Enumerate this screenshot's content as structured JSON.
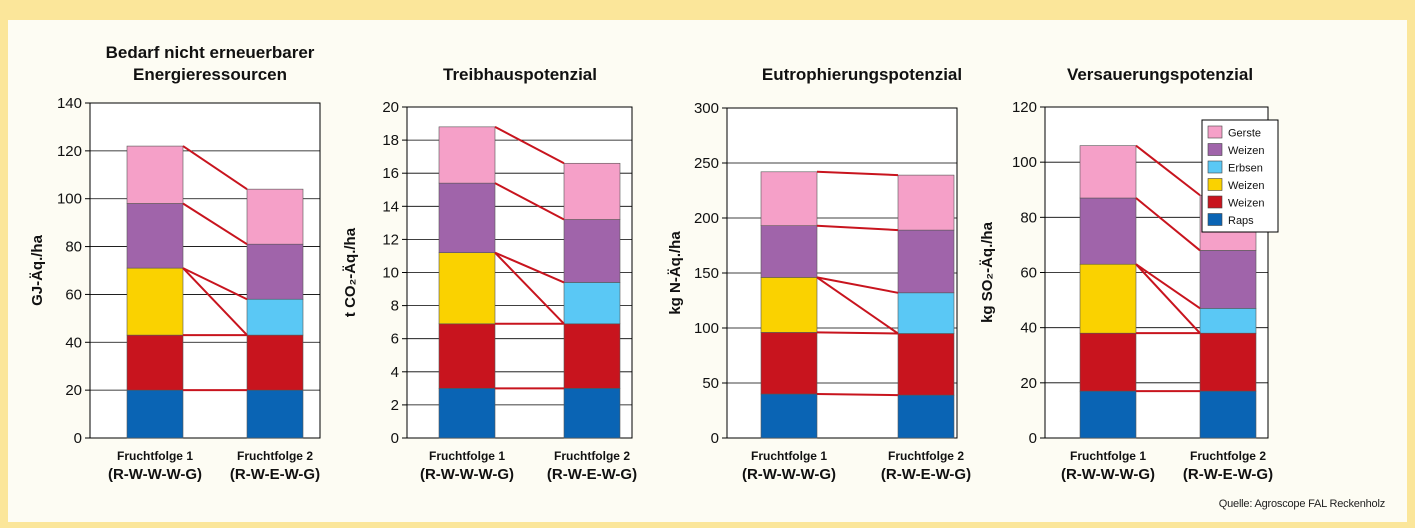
{
  "colors": {
    "Raps": "#0a64b4",
    "Weizen_1": "#c8141e",
    "Weizen_2": "#fad200",
    "Erbsen": "#5ac8f5",
    "Weizen_3": "#a064aa",
    "Gerste": "#f5a0c8",
    "connector": "#c8141e"
  },
  "legend": [
    {
      "label": "Gerste",
      "key": "Gerste"
    },
    {
      "label": "Weizen",
      "key": "Weizen_3"
    },
    {
      "label": "Erbsen",
      "key": "Erbsen"
    },
    {
      "label": "Weizen",
      "key": "Weizen_2"
    },
    {
      "label": "Weizen",
      "key": "Weizen_1"
    },
    {
      "label": "Raps",
      "key": "Raps"
    }
  ],
  "source": "Quelle: Agroscope FAL Reckenholz",
  "chart_data": [
    {
      "type": "bar",
      "stacked": true,
      "title": [
        "Bedarf nicht erneuerbarer",
        "Energieressourcen"
      ],
      "ylabel": "GJ-Äq./ha",
      "ylim": [
        0,
        140
      ],
      "yticks": [
        0,
        20,
        40,
        60,
        80,
        100,
        120,
        140
      ],
      "categories": [
        [
          "Fruchtfolge 1",
          "(R-W-W-W-G)"
        ],
        [
          "Fruchtfolge 2",
          "(R-W-E-W-G)"
        ]
      ],
      "bars": [
        [
          {
            "crop": "Raps",
            "value": 20
          },
          {
            "crop": "Weizen_1",
            "value": 23
          },
          {
            "crop": "Weizen_2",
            "value": 28
          },
          {
            "crop": "Weizen_3",
            "value": 27
          },
          {
            "crop": "Gerste",
            "value": 24
          }
        ],
        [
          {
            "crop": "Raps",
            "value": 20
          },
          {
            "crop": "Weizen_1",
            "value": 23
          },
          {
            "crop": "Erbsen",
            "value": 15
          },
          {
            "crop": "Weizen_3",
            "value": 23
          },
          {
            "crop": "Gerste",
            "value": 23
          }
        ]
      ]
    },
    {
      "type": "bar",
      "stacked": true,
      "title": [
        "Treibhauspotenzial"
      ],
      "ylabel": "t CO₂-Äq./ha",
      "ylim": [
        0,
        20
      ],
      "yticks": [
        0,
        2,
        4,
        6,
        8,
        10,
        12,
        14,
        16,
        18,
        20
      ],
      "categories": [
        [
          "Fruchtfolge 1",
          "(R-W-W-W-G)"
        ],
        [
          "Fruchtfolge 2",
          "(R-W-E-W-G)"
        ]
      ],
      "bars": [
        [
          {
            "crop": "Raps",
            "value": 3.0
          },
          {
            "crop": "Weizen_1",
            "value": 3.9
          },
          {
            "crop": "Weizen_2",
            "value": 4.3
          },
          {
            "crop": "Weizen_3",
            "value": 4.2
          },
          {
            "crop": "Gerste",
            "value": 3.4
          }
        ],
        [
          {
            "crop": "Raps",
            "value": 3.0
          },
          {
            "crop": "Weizen_1",
            "value": 3.9
          },
          {
            "crop": "Erbsen",
            "value": 2.5
          },
          {
            "crop": "Weizen_3",
            "value": 3.8
          },
          {
            "crop": "Gerste",
            "value": 3.4
          }
        ]
      ]
    },
    {
      "type": "bar",
      "stacked": true,
      "title": [
        "Eutrophierungspotenzial"
      ],
      "ylabel": "kg N-Äq./ha",
      "ylim": [
        0,
        300
      ],
      "yticks": [
        0,
        50,
        100,
        150,
        200,
        250,
        300
      ],
      "categories": [
        [
          "Fruchtfolge 1",
          "(R-W-W-W-G)"
        ],
        [
          "Fruchtfolge 2",
          "(R-W-E-W-G)"
        ]
      ],
      "bars": [
        [
          {
            "crop": "Raps",
            "value": 40
          },
          {
            "crop": "Weizen_1",
            "value": 56
          },
          {
            "crop": "Weizen_2",
            "value": 50
          },
          {
            "crop": "Weizen_3",
            "value": 47
          },
          {
            "crop": "Gerste",
            "value": 49
          }
        ],
        [
          {
            "crop": "Raps",
            "value": 39
          },
          {
            "crop": "Weizen_1",
            "value": 56
          },
          {
            "crop": "Erbsen",
            "value": 37
          },
          {
            "crop": "Weizen_3",
            "value": 57
          },
          {
            "crop": "Gerste",
            "value": 50
          }
        ]
      ]
    },
    {
      "type": "bar",
      "stacked": true,
      "title": [
        "Versauerungspotenzial"
      ],
      "ylabel": "kg SO₂-Äq./ha",
      "ylim": [
        0,
        120
      ],
      "yticks": [
        0,
        20,
        40,
        60,
        80,
        100,
        120
      ],
      "categories": [
        [
          "Fruchtfolge 1",
          "(R-W-W-W-G)"
        ],
        [
          "Fruchtfolge 2",
          "(R-W-E-W-G)"
        ]
      ],
      "bars": [
        [
          {
            "crop": "Raps",
            "value": 17
          },
          {
            "crop": "Weizen_1",
            "value": 21
          },
          {
            "crop": "Weizen_2",
            "value": 25
          },
          {
            "crop": "Weizen_3",
            "value": 24
          },
          {
            "crop": "Gerste",
            "value": 19
          }
        ],
        [
          {
            "crop": "Raps",
            "value": 17
          },
          {
            "crop": "Weizen_1",
            "value": 21
          },
          {
            "crop": "Erbsen",
            "value": 9
          },
          {
            "crop": "Weizen_3",
            "value": 21
          },
          {
            "crop": "Gerste",
            "value": 20
          }
        ]
      ]
    }
  ]
}
